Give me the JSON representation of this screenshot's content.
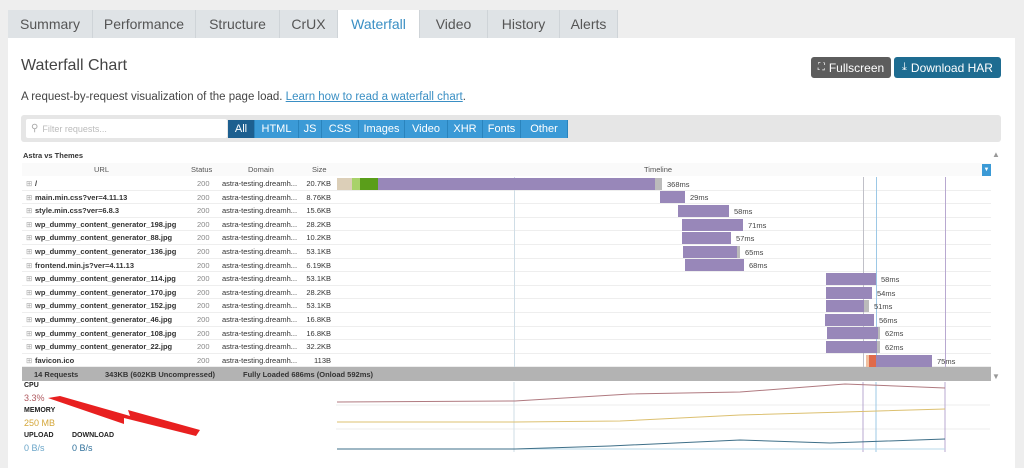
{
  "tabs": [
    "Summary",
    "Performance",
    "Structure",
    "CrUX",
    "Waterfall",
    "Video",
    "History",
    "Alerts"
  ],
  "active_tab": "Waterfall",
  "title": "Waterfall Chart",
  "fullscreen_label": "Fullscreen",
  "download_label": "Download HAR",
  "description": "A request-by-request visualization of the page load.",
  "learn_link": "Learn how to read a waterfall chart",
  "description_end": ".",
  "filter_placeholder": "Filter requests...",
  "filters": [
    "All",
    "HTML",
    "JS",
    "CSS",
    "Images",
    "Video",
    "XHR",
    "Fonts",
    "Other"
  ],
  "active_filter": "All",
  "table_title": "Astra vs Themes",
  "columns": {
    "url": "URL",
    "status": "Status",
    "domain": "Domain",
    "size": "Size",
    "timeline": "Timeline"
  },
  "rows": [
    {
      "url": "/",
      "status": "200",
      "domain": "astra-testing.dreamh...",
      "size": "20.7KB",
      "duration": "368ms"
    },
    {
      "url": "main.min.css?ver=4.11.13",
      "status": "200",
      "domain": "astra-testing.dreamh...",
      "size": "8.76KB",
      "duration": "29ms"
    },
    {
      "url": "style.min.css?ver=6.8.3",
      "status": "200",
      "domain": "astra-testing.dreamh...",
      "size": "15.6KB",
      "duration": "58ms"
    },
    {
      "url": "wp_dummy_content_generator_198.jpg",
      "status": "200",
      "domain": "astra-testing.dreamh...",
      "size": "28.2KB",
      "duration": "71ms"
    },
    {
      "url": "wp_dummy_content_generator_88.jpg",
      "status": "200",
      "domain": "astra-testing.dreamh...",
      "size": "10.2KB",
      "duration": "57ms"
    },
    {
      "url": "wp_dummy_content_generator_136.jpg",
      "status": "200",
      "domain": "astra-testing.dreamh...",
      "size": "53.1KB",
      "duration": "65ms"
    },
    {
      "url": "frontend.min.js?ver=4.11.13",
      "status": "200",
      "domain": "astra-testing.dreamh...",
      "size": "6.19KB",
      "duration": "68ms"
    },
    {
      "url": "wp_dummy_content_generator_114.jpg",
      "status": "200",
      "domain": "astra-testing.dreamh...",
      "size": "53.1KB",
      "duration": "58ms"
    },
    {
      "url": "wp_dummy_content_generator_170.jpg",
      "status": "200",
      "domain": "astra-testing.dreamh...",
      "size": "28.2KB",
      "duration": "54ms"
    },
    {
      "url": "wp_dummy_content_generator_152.jpg",
      "status": "200",
      "domain": "astra-testing.dreamh...",
      "size": "53.1KB",
      "duration": "51ms"
    },
    {
      "url": "wp_dummy_content_generator_46.jpg",
      "status": "200",
      "domain": "astra-testing.dreamh...",
      "size": "16.8KB",
      "duration": "56ms"
    },
    {
      "url": "wp_dummy_content_generator_108.jpg",
      "status": "200",
      "domain": "astra-testing.dreamh...",
      "size": "16.8KB",
      "duration": "62ms"
    },
    {
      "url": "wp_dummy_content_generator_22.jpg",
      "status": "200",
      "domain": "astra-testing.dreamh...",
      "size": "32.2KB",
      "duration": "62ms"
    },
    {
      "url": "favicon.ico",
      "status": "200",
      "domain": "astra-testing.dreamh...",
      "size": "113B",
      "duration": "75ms"
    }
  ],
  "footer": {
    "requests": "14 Requests",
    "size": "343KB  (602KB Uncompressed)",
    "loaded": "Fully Loaded 686ms  (Onload 592ms)"
  },
  "metrics": {
    "cpu_label": "CPU",
    "cpu_value": "3.3%",
    "memory_label": "MEMORY",
    "memory_value": "250 MB",
    "upload_label": "UPLOAD",
    "upload_value": "0 B/s",
    "download_label": "DOWNLOAD",
    "download_value": "0 B/s"
  },
  "colors": {
    "accent": "#3b9ad6",
    "active_filter": "#1d5f8f",
    "download_btn": "#1e6c91",
    "fullscreen_btn": "#5d5d5d",
    "bar": "#9887b9",
    "cpu": "#b05a60",
    "memory": "#d4a73a",
    "upload": "#6aa5c8",
    "download": "#2e6f9a",
    "annotation_arrow": "#e82020"
  }
}
